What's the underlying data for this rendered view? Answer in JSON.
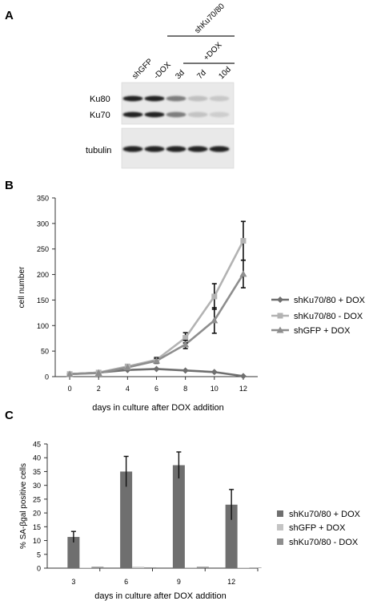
{
  "panels": {
    "a": {
      "letter": "A",
      "group_label": "shKu70/80",
      "dox_label": "+DOX",
      "lanes": [
        "shGFP",
        "-DOX",
        "3d",
        "7d",
        "10d"
      ],
      "upper_bands": [
        "Ku80",
        "Ku70"
      ],
      "lower_bands": [
        "tubulin"
      ],
      "ku80_intensity": [
        1.0,
        1.0,
        0.55,
        0.22,
        0.18
      ],
      "ku70_intensity": [
        1.0,
        1.0,
        0.55,
        0.2,
        0.15
      ],
      "tubulin_intensity": [
        1.0,
        1.0,
        1.0,
        1.0,
        1.0
      ]
    },
    "b": {
      "letter": "B"
    },
    "c": {
      "letter": "C"
    }
  },
  "chart_data": [
    {
      "type": "line",
      "xlabel": "days in culture after DOX addition",
      "ylabel": "cell number",
      "x": [
        0,
        2,
        4,
        6,
        8,
        10,
        12
      ],
      "xticks": [
        "0",
        "2",
        "4",
        "6",
        "8",
        "10",
        "12"
      ],
      "ylim": [
        0,
        350
      ],
      "yticks": [
        "0",
        "50",
        "100",
        "150",
        "200",
        "250",
        "300",
        "350"
      ],
      "legend_position": "right",
      "series": [
        {
          "name": "shKu70/80 + DOX",
          "marker": "diamond",
          "color": "#6f6f6f",
          "values": [
            5,
            8,
            13,
            15,
            12,
            9,
            1
          ]
        },
        {
          "name": "shKu70/80 - DOX",
          "marker": "square",
          "color": "#b3b3b3",
          "values": [
            5,
            8,
            20,
            33,
            76,
            157,
            266
          ],
          "errors": [
            2,
            3,
            4,
            5,
            10,
            25,
            38
          ]
        },
        {
          "name": "shGFP + DOX",
          "marker": "triangle",
          "color": "#8e8e8e",
          "values": [
            5,
            7,
            18,
            31,
            63,
            110,
            201
          ],
          "errors": [
            2,
            3,
            4,
            5,
            8,
            25,
            27
          ]
        }
      ]
    },
    {
      "type": "bar",
      "xlabel": "days in culture after DOX addition",
      "ylabel": "% SA-βgal positive cells",
      "categories": [
        "3",
        "6",
        "9",
        "12"
      ],
      "ylim": [
        0,
        45
      ],
      "yticks": [
        "0",
        "5",
        "10",
        "15",
        "20",
        "25",
        "30",
        "35",
        "40",
        "45"
      ],
      "legend_position": "right",
      "series": [
        {
          "name": "shKu70/80 + DOX",
          "color": "#6f6f6f",
          "values": [
            11.3,
            35.0,
            37.3,
            23.0
          ],
          "errors": [
            2.0,
            5.5,
            4.8,
            5.5
          ]
        },
        {
          "name": "shGFP + DOX",
          "color": "#c4c4c4",
          "values": [
            0.2,
            0.5,
            0.3,
            0.2
          ]
        },
        {
          "name": "shKu70/80 - DOX",
          "color": "#8e8e8e",
          "values": [
            0.5,
            0.3,
            0.5,
            0.2
          ]
        }
      ]
    }
  ]
}
